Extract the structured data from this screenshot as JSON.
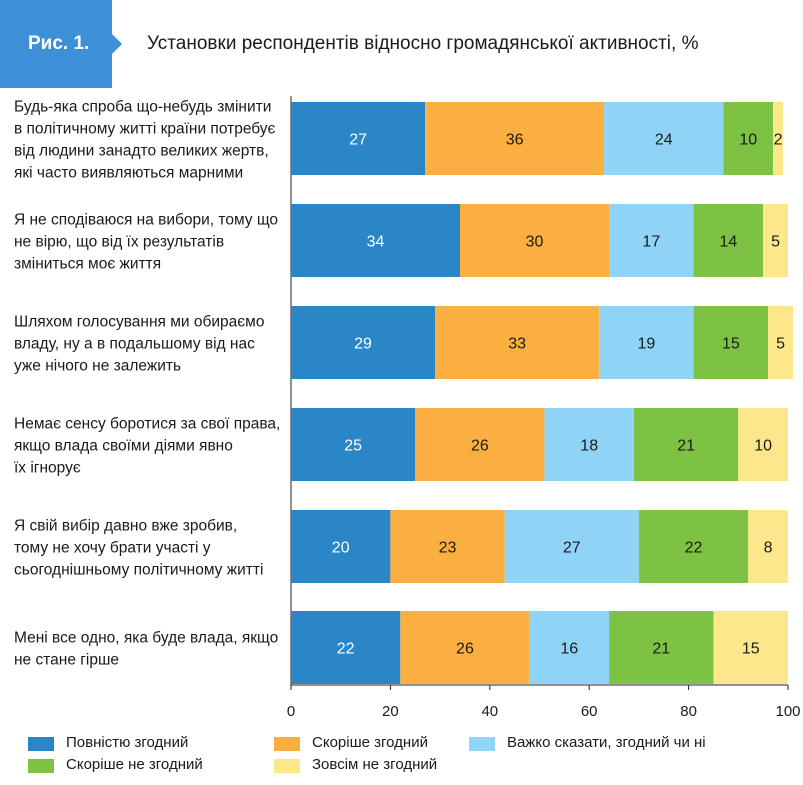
{
  "header": {
    "figure_label": "Рис. 1.",
    "title": "Установки респондентів відносно громадянської активності, %"
  },
  "colors": {
    "badge": "#3d8fd6",
    "series": [
      "#2b86c8",
      "#fbaf41",
      "#8fd4f6",
      "#7dc243",
      "#fde78b"
    ]
  },
  "chart_data": {
    "type": "bar",
    "orientation": "horizontal",
    "stacked": true,
    "title": "Установки респондентів відносно громадянської активності, %",
    "xlim": [
      0,
      100
    ],
    "x_ticks": [
      "0",
      "20",
      "40",
      "60",
      "80",
      "100"
    ],
    "grid": false,
    "legend_position": "bottom",
    "categories": [
      [
        "Будь-яка спроба що-небудь змінити",
        "в політичному житті країни потребує",
        "від людини занадто великих жертв,",
        "які часто виявляються марними"
      ],
      [
        "Я не сподіваюся на вибори, тому що",
        "не вірю, що від  їх результатів",
        "зміниться моє життя"
      ],
      [
        "Шляхом голосування ми обираємо",
        "владу, ну а в подальшому від нас",
        "уже нічого не залежить"
      ],
      [
        "Немає сенсу боротися за свої права,",
        "якщо влада своїми діями явно",
        "їх ігнорує"
      ],
      [
        "Я свій вибір давно вже зробив,",
        "тому не хочу брати участі у",
        "сьогоднішньому політичному житті"
      ],
      [
        "Мені все одно, яка буде влада, якщо",
        "не стане гірше"
      ]
    ],
    "series": [
      {
        "name": "Повністю згодний",
        "values": [
          27,
          34,
          29,
          25,
          20,
          22
        ]
      },
      {
        "name": "Скоріше згодний",
        "values": [
          36,
          30,
          33,
          26,
          23,
          26
        ]
      },
      {
        "name": "Важко сказати, згодний чи ні",
        "values": [
          24,
          17,
          19,
          18,
          27,
          16
        ]
      },
      {
        "name": "Скоріше не згодний",
        "values": [
          10,
          14,
          15,
          21,
          22,
          21
        ]
      },
      {
        "name": "Зовсім не згодний",
        "values": [
          2,
          5,
          5,
          10,
          8,
          15
        ]
      }
    ]
  }
}
